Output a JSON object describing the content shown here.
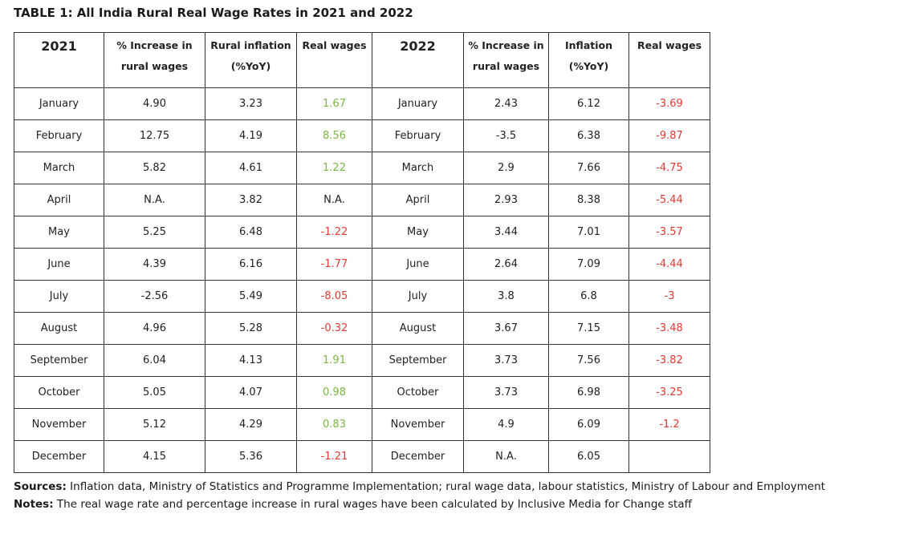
{
  "title": "TABLE 1: All India Rural Real Wage Rates in 2021 and 2022",
  "colors": {
    "positive": "#7ab648",
    "negative": "#e53935",
    "border": "#333333",
    "text": "#222222"
  },
  "headers": {
    "year_2021": "2021",
    "increase_2021_line1": "% Increase in",
    "increase_2021_line2": "rural wages",
    "inflation_2021_line1": "Rural inflation",
    "inflation_2021_line2": "(%YoY)",
    "real_2021": "Real wages",
    "year_2022": "2022",
    "increase_2022_line1": "% Increase in",
    "increase_2022_line2": "rural wages",
    "inflation_2022_line1": "Inflation",
    "inflation_2022_line2": "(%YoY)",
    "real_2022": "Real wages"
  },
  "rows": [
    {
      "m2021": "January",
      "inc2021": "4.90",
      "inf2021": "3.23",
      "real2021": "1.67",
      "real2021_sign": "pos",
      "m2022": "January",
      "inc2022": "2.43",
      "inf2022": "6.12",
      "real2022": "-3.69",
      "real2022_sign": "neg"
    },
    {
      "m2021": "February",
      "inc2021": "12.75",
      "inf2021": "4.19",
      "real2021": "8.56",
      "real2021_sign": "pos",
      "m2022": "February",
      "inc2022": "-3.5",
      "inf2022": "6.38",
      "real2022": "-9.87",
      "real2022_sign": "neg"
    },
    {
      "m2021": "March",
      "inc2021": "5.82",
      "inf2021": "4.61",
      "real2021": "1.22",
      "real2021_sign": "pos",
      "m2022": "March",
      "inc2022": "2.9",
      "inf2022": "7.66",
      "real2022": "-4.75",
      "real2022_sign": "neg"
    },
    {
      "m2021": "April",
      "inc2021": "N.A.",
      "inf2021": "3.82",
      "real2021": "N.A.",
      "real2021_sign": "none",
      "m2022": "April",
      "inc2022": "2.93",
      "inf2022": "8.38",
      "real2022": "-5.44",
      "real2022_sign": "neg"
    },
    {
      "m2021": "May",
      "inc2021": "5.25",
      "inf2021": "6.48",
      "real2021": "-1.22",
      "real2021_sign": "neg",
      "m2022": "May",
      "inc2022": "3.44",
      "inf2022": "7.01",
      "real2022": "-3.57",
      "real2022_sign": "neg"
    },
    {
      "m2021": "June",
      "inc2021": "4.39",
      "inf2021": "6.16",
      "real2021": "-1.77",
      "real2021_sign": "neg",
      "m2022": "June",
      "inc2022": "2.64",
      "inf2022": "7.09",
      "real2022": "-4.44",
      "real2022_sign": "neg"
    },
    {
      "m2021": "July",
      "inc2021": "-2.56",
      "inf2021": "5.49",
      "real2021": "-8.05",
      "real2021_sign": "neg",
      "m2022": "July",
      "inc2022": "3.8",
      "inf2022": "6.8",
      "real2022": "-3",
      "real2022_sign": "neg"
    },
    {
      "m2021": "August",
      "inc2021": "4.96",
      "inf2021": "5.28",
      "real2021": "-0.32",
      "real2021_sign": "neg",
      "m2022": "August",
      "inc2022": "3.67",
      "inf2022": "7.15",
      "real2022": "-3.48",
      "real2022_sign": "neg"
    },
    {
      "m2021": "September",
      "inc2021": "6.04",
      "inf2021": "4.13",
      "real2021": "1.91",
      "real2021_sign": "pos",
      "m2022": "September",
      "inc2022": "3.73",
      "inf2022": "7.56",
      "real2022": "-3.82",
      "real2022_sign": "neg"
    },
    {
      "m2021": "October",
      "inc2021": "5.05",
      "inf2021": "4.07",
      "real2021": "0.98",
      "real2021_sign": "pos",
      "m2022": "October",
      "inc2022": "3.73",
      "inf2022": "6.98",
      "real2022": "-3.25",
      "real2022_sign": "neg"
    },
    {
      "m2021": "November",
      "inc2021": "5.12",
      "inf2021": "4.29",
      "real2021": "0.83",
      "real2021_sign": "pos",
      "m2022": "November",
      "inc2022": "4.9",
      "inf2022": "6.09",
      "real2022": "-1.2",
      "real2022_sign": "neg"
    },
    {
      "m2021": "December",
      "inc2021": "4.15",
      "inf2021": "5.36",
      "real2021": "-1.21",
      "real2021_sign": "neg",
      "m2022": "December",
      "inc2022": "N.A.",
      "inf2022": "6.05",
      "real2022": "",
      "real2022_sign": "none"
    }
  ],
  "footer": {
    "sources_label": "Sources:",
    "sources_text": " Inflation data, Ministry of Statistics and Programme Implementation; rural wage data, labour statistics, Ministry of Labour and Employment",
    "notes_label": "Notes:",
    "notes_text": " The real wage rate and percentage increase in rural wages have been calculated by Inclusive Media for Change staff"
  }
}
